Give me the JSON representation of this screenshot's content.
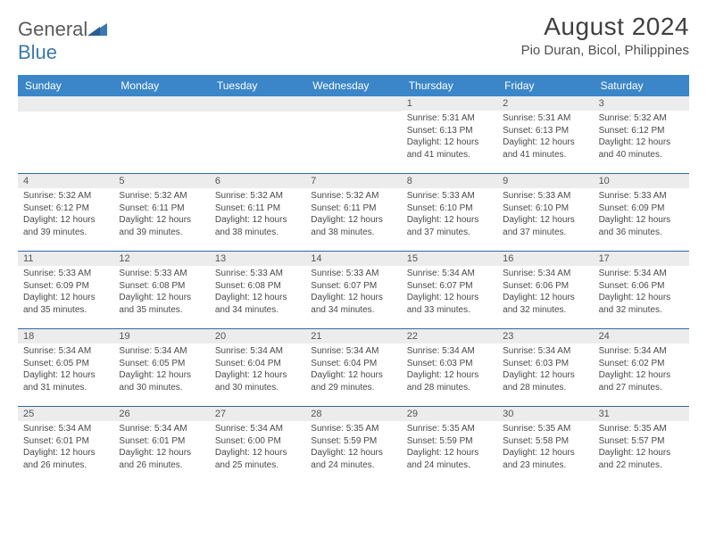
{
  "logo": {
    "word1": "General",
    "word2": "Blue"
  },
  "title": "August 2024",
  "location": "Pio Duran, Bicol, Philippines",
  "colors": {
    "header_bg": "#3a86c8",
    "header_text": "#ffffff",
    "daynum_bg": "#ececec",
    "border": "#2f6aa3",
    "body_text": "#4a4a4a",
    "logo_gray": "#5b5b5b",
    "logo_blue": "#3a78b5"
  },
  "day_names": [
    "Sunday",
    "Monday",
    "Tuesday",
    "Wednesday",
    "Thursday",
    "Friday",
    "Saturday"
  ],
  "weeks": [
    [
      null,
      null,
      null,
      null,
      {
        "n": "1",
        "sr": "5:31 AM",
        "ss": "6:13 PM",
        "dl": "12 hours and 41 minutes."
      },
      {
        "n": "2",
        "sr": "5:31 AM",
        "ss": "6:13 PM",
        "dl": "12 hours and 41 minutes."
      },
      {
        "n": "3",
        "sr": "5:32 AM",
        "ss": "6:12 PM",
        "dl": "12 hours and 40 minutes."
      }
    ],
    [
      {
        "n": "4",
        "sr": "5:32 AM",
        "ss": "6:12 PM",
        "dl": "12 hours and 39 minutes."
      },
      {
        "n": "5",
        "sr": "5:32 AM",
        "ss": "6:11 PM",
        "dl": "12 hours and 39 minutes."
      },
      {
        "n": "6",
        "sr": "5:32 AM",
        "ss": "6:11 PM",
        "dl": "12 hours and 38 minutes."
      },
      {
        "n": "7",
        "sr": "5:32 AM",
        "ss": "6:11 PM",
        "dl": "12 hours and 38 minutes."
      },
      {
        "n": "8",
        "sr": "5:33 AM",
        "ss": "6:10 PM",
        "dl": "12 hours and 37 minutes."
      },
      {
        "n": "9",
        "sr": "5:33 AM",
        "ss": "6:10 PM",
        "dl": "12 hours and 37 minutes."
      },
      {
        "n": "10",
        "sr": "5:33 AM",
        "ss": "6:09 PM",
        "dl": "12 hours and 36 minutes."
      }
    ],
    [
      {
        "n": "11",
        "sr": "5:33 AM",
        "ss": "6:09 PM",
        "dl": "12 hours and 35 minutes."
      },
      {
        "n": "12",
        "sr": "5:33 AM",
        "ss": "6:08 PM",
        "dl": "12 hours and 35 minutes."
      },
      {
        "n": "13",
        "sr": "5:33 AM",
        "ss": "6:08 PM",
        "dl": "12 hours and 34 minutes."
      },
      {
        "n": "14",
        "sr": "5:33 AM",
        "ss": "6:07 PM",
        "dl": "12 hours and 34 minutes."
      },
      {
        "n": "15",
        "sr": "5:34 AM",
        "ss": "6:07 PM",
        "dl": "12 hours and 33 minutes."
      },
      {
        "n": "16",
        "sr": "5:34 AM",
        "ss": "6:06 PM",
        "dl": "12 hours and 32 minutes."
      },
      {
        "n": "17",
        "sr": "5:34 AM",
        "ss": "6:06 PM",
        "dl": "12 hours and 32 minutes."
      }
    ],
    [
      {
        "n": "18",
        "sr": "5:34 AM",
        "ss": "6:05 PM",
        "dl": "12 hours and 31 minutes."
      },
      {
        "n": "19",
        "sr": "5:34 AM",
        "ss": "6:05 PM",
        "dl": "12 hours and 30 minutes."
      },
      {
        "n": "20",
        "sr": "5:34 AM",
        "ss": "6:04 PM",
        "dl": "12 hours and 30 minutes."
      },
      {
        "n": "21",
        "sr": "5:34 AM",
        "ss": "6:04 PM",
        "dl": "12 hours and 29 minutes."
      },
      {
        "n": "22",
        "sr": "5:34 AM",
        "ss": "6:03 PM",
        "dl": "12 hours and 28 minutes."
      },
      {
        "n": "23",
        "sr": "5:34 AM",
        "ss": "6:03 PM",
        "dl": "12 hours and 28 minutes."
      },
      {
        "n": "24",
        "sr": "5:34 AM",
        "ss": "6:02 PM",
        "dl": "12 hours and 27 minutes."
      }
    ],
    [
      {
        "n": "25",
        "sr": "5:34 AM",
        "ss": "6:01 PM",
        "dl": "12 hours and 26 minutes."
      },
      {
        "n": "26",
        "sr": "5:34 AM",
        "ss": "6:01 PM",
        "dl": "12 hours and 26 minutes."
      },
      {
        "n": "27",
        "sr": "5:34 AM",
        "ss": "6:00 PM",
        "dl": "12 hours and 25 minutes."
      },
      {
        "n": "28",
        "sr": "5:35 AM",
        "ss": "5:59 PM",
        "dl": "12 hours and 24 minutes."
      },
      {
        "n": "29",
        "sr": "5:35 AM",
        "ss": "5:59 PM",
        "dl": "12 hours and 24 minutes."
      },
      {
        "n": "30",
        "sr": "5:35 AM",
        "ss": "5:58 PM",
        "dl": "12 hours and 23 minutes."
      },
      {
        "n": "31",
        "sr": "5:35 AM",
        "ss": "5:57 PM",
        "dl": "12 hours and 22 minutes."
      }
    ]
  ],
  "labels": {
    "sunrise": "Sunrise:",
    "sunset": "Sunset:",
    "daylight": "Daylight:"
  }
}
